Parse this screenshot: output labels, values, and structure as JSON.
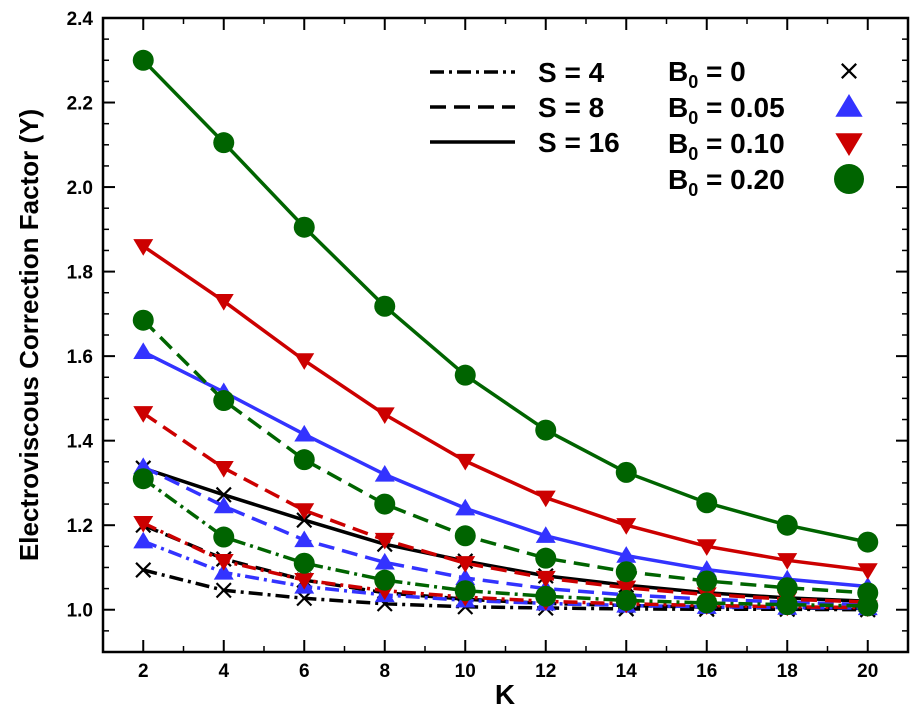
{
  "chart_data": {
    "type": "line",
    "xlabel": "K",
    "ylabel": "Electroviscous Correction Factor (Y)",
    "xlim": [
      1,
      21
    ],
    "ylim": [
      0.9,
      2.4
    ],
    "x": [
      2,
      4,
      6,
      8,
      10,
      12,
      14,
      16,
      18,
      20
    ],
    "x_ticks": [
      "2",
      "4",
      "6",
      "8",
      "10",
      "12",
      "14",
      "16",
      "18",
      "20"
    ],
    "y_ticks": [
      "1.0",
      "1.2",
      "1.4",
      "1.6",
      "1.8",
      "2.0",
      "2.2",
      "2.4"
    ],
    "y_tick_values": [
      1.0,
      1.2,
      1.4,
      1.6,
      1.8,
      2.0,
      2.2,
      2.4
    ],
    "grid": false,
    "legend_position": "top-right",
    "line_legend": [
      {
        "label": "S = 4",
        "style": "dashdot"
      },
      {
        "label": "S = 8",
        "style": "dashed"
      },
      {
        "label": "S = 16",
        "style": "solid"
      }
    ],
    "marker_legend": [
      {
        "label_prefix": "B",
        "label_sub": "0",
        "label_suffix": " = 0",
        "marker": "x",
        "color": "#000000"
      },
      {
        "label_prefix": "B",
        "label_sub": "0",
        "label_suffix": " = 0.05",
        "marker": "triangle-up",
        "color": "#3333ff"
      },
      {
        "label_prefix": "B",
        "label_sub": "0",
        "label_suffix": " = 0.10",
        "marker": "triangle-down",
        "color": "#cc0000"
      },
      {
        "label_prefix": "B",
        "label_sub": "0",
        "label_suffix": " = 0.20",
        "marker": "circle",
        "color": "#006400"
      }
    ],
    "series": [
      {
        "S": 4,
        "B0": "0",
        "line": "dashdot",
        "marker": "x",
        "color": "#000000",
        "values": [
          1.094,
          1.046,
          1.027,
          1.014,
          1.007,
          1.004,
          1.002,
          1.001,
          1.001,
          1.0
        ]
      },
      {
        "S": 8,
        "B0": "0",
        "line": "dashed",
        "marker": "x",
        "color": "#000000",
        "values": [
          1.2,
          1.12,
          1.07,
          1.04,
          1.025,
          1.015,
          1.01,
          1.006,
          1.004,
          1.003
        ]
      },
      {
        "S": 16,
        "B0": "0",
        "line": "solid",
        "marker": "x",
        "color": "#000000",
        "values": [
          1.335,
          1.272,
          1.212,
          1.155,
          1.115,
          1.08,
          1.058,
          1.04,
          1.028,
          1.02
        ]
      },
      {
        "S": 4,
        "B0": "0.05",
        "line": "dashdot",
        "marker": "triangle-up",
        "color": "#3333ff",
        "values": [
          1.162,
          1.088,
          1.055,
          1.035,
          1.022,
          1.015,
          1.01,
          1.007,
          1.005,
          1.004
        ]
      },
      {
        "S": 8,
        "B0": "0.05",
        "line": "dashed",
        "marker": "triangle-up",
        "color": "#3333ff",
        "values": [
          1.338,
          1.245,
          1.165,
          1.112,
          1.075,
          1.05,
          1.035,
          1.025,
          1.018,
          1.012
        ]
      },
      {
        "S": 16,
        "B0": "0.05",
        "line": "solid",
        "marker": "triangle-up",
        "color": "#3333ff",
        "values": [
          1.61,
          1.515,
          1.415,
          1.32,
          1.24,
          1.175,
          1.128,
          1.095,
          1.072,
          1.055
        ]
      },
      {
        "S": 4,
        "B0": "0.10",
        "line": "dashdot",
        "marker": "triangle-down",
        "color": "#cc0000",
        "values": [
          1.205,
          1.115,
          1.07,
          1.045,
          1.03,
          1.02,
          1.014,
          1.01,
          1.007,
          1.005
        ]
      },
      {
        "S": 8,
        "B0": "0.10",
        "line": "dashed",
        "marker": "triangle-down",
        "color": "#cc0000",
        "values": [
          1.465,
          1.335,
          1.235,
          1.165,
          1.11,
          1.075,
          1.052,
          1.036,
          1.025,
          1.018
        ]
      },
      {
        "S": 16,
        "B0": "0.10",
        "line": "solid",
        "marker": "triangle-down",
        "color": "#cc0000",
        "values": [
          1.86,
          1.73,
          1.59,
          1.462,
          1.352,
          1.265,
          1.2,
          1.15,
          1.117,
          1.093
        ]
      },
      {
        "S": 4,
        "B0": "0.20",
        "line": "dashdot",
        "marker": "circle",
        "color": "#006400",
        "values": [
          1.31,
          1.172,
          1.11,
          1.07,
          1.045,
          1.032,
          1.022,
          1.016,
          1.012,
          1.009
        ]
      },
      {
        "S": 8,
        "B0": "0.20",
        "line": "dashed",
        "marker": "circle",
        "color": "#006400",
        "values": [
          1.685,
          1.495,
          1.355,
          1.25,
          1.175,
          1.122,
          1.09,
          1.068,
          1.052,
          1.04
        ]
      },
      {
        "S": 16,
        "B0": "0.20",
        "line": "solid",
        "marker": "circle",
        "color": "#006400",
        "values": [
          2.3,
          2.105,
          1.905,
          1.718,
          1.555,
          1.425,
          1.325,
          1.253,
          1.2,
          1.16
        ]
      }
    ]
  }
}
